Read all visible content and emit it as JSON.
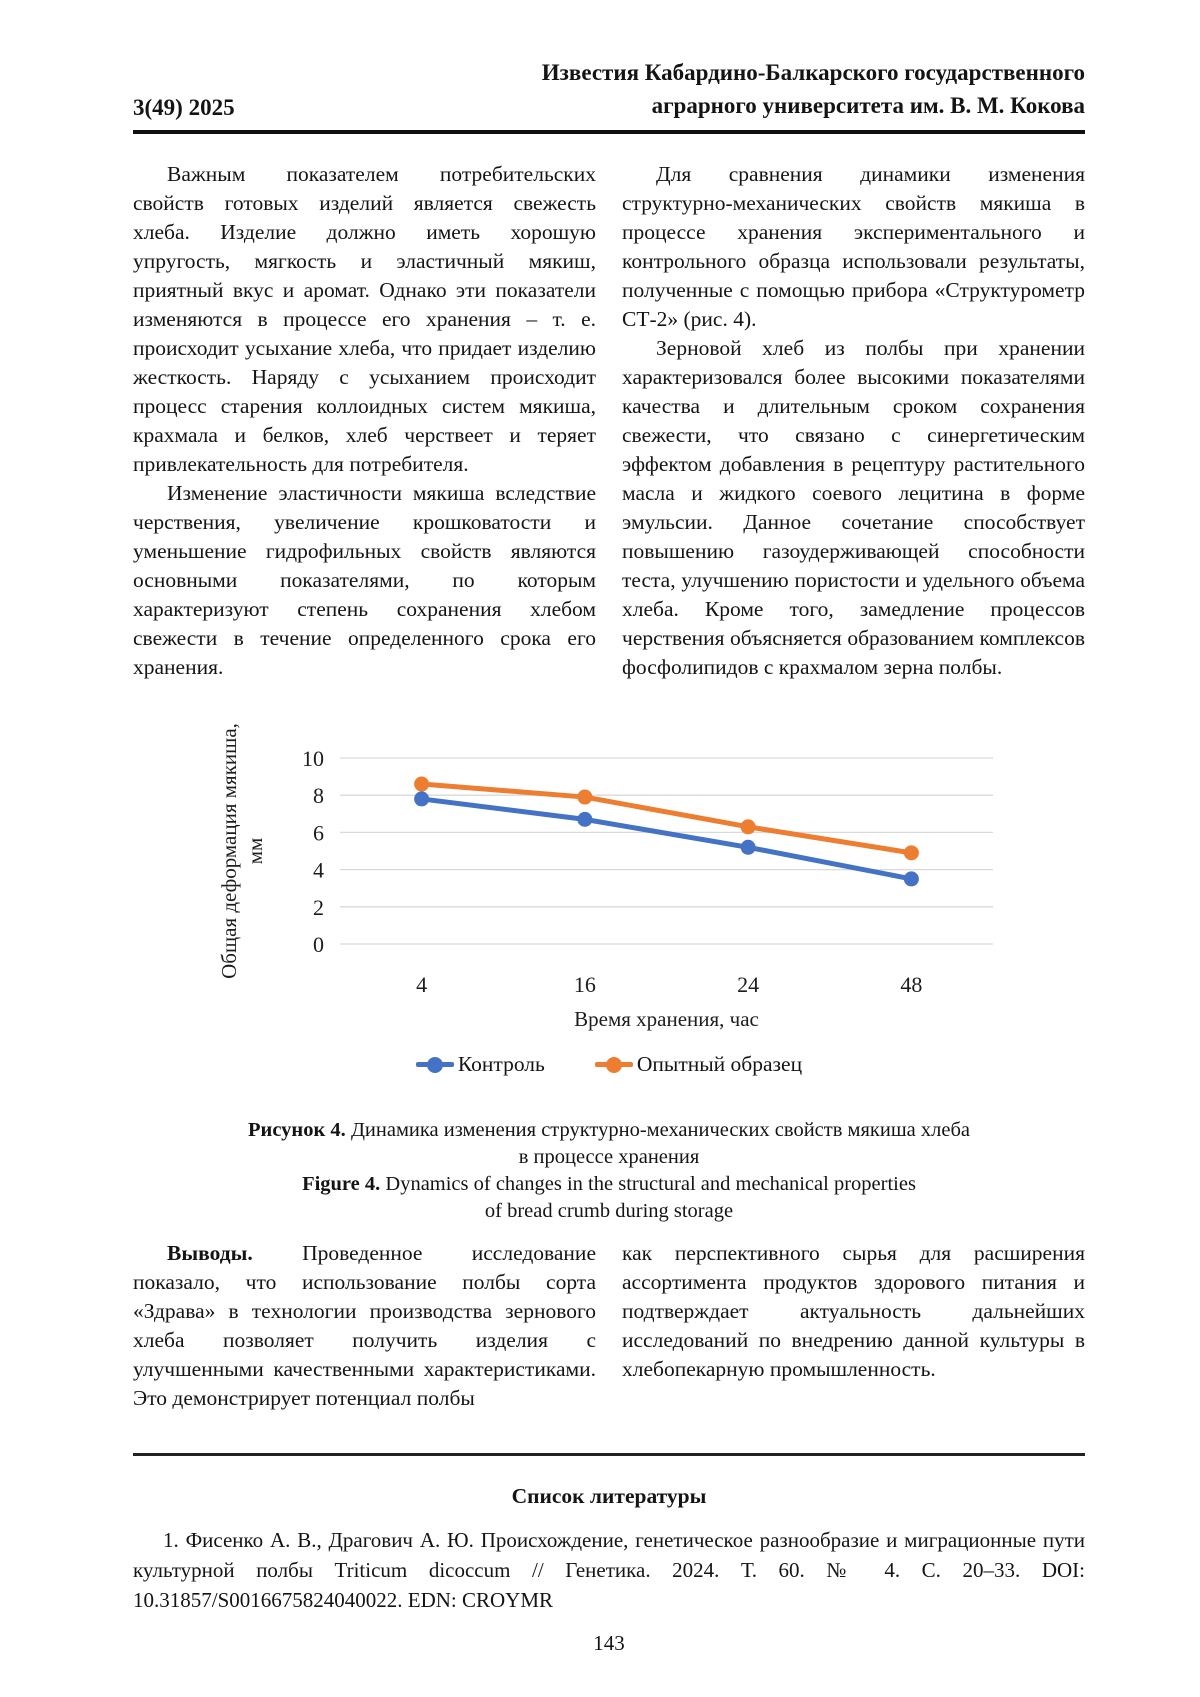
{
  "journal": {
    "issue": "3(49) 2025",
    "title_line1": "Известия Кабардино-Балкарского государственного",
    "title_line2": "аграрного университета им. В. М. Кокова"
  },
  "body": {
    "left": [
      "Важным показателем потребительских свойств готовых изделий является свежесть хлеба. Изделие должно иметь хорошую упругость, мягкость и эластичный мякиш, приятный вкус и аромат. Однако эти показатели изменяются в процессе его хранения – т. е. происходит усыхание хлеба, что придает изделию жесткость. Наряду с усыханием происходит процесс старения коллоидных систем мякиша, крахмала и белков, хлеб черствеет и теряет привлекательность для потребителя.",
      "Изменение эластичности мякиша вследствие черствения, увеличение крошковатости и уменьшение гидрофильных свойств являются основными показателями, по которым характеризуют степень сохранения хлебом свежести в течение определенного срока его хранения."
    ],
    "right": [
      "Для сравнения динамики изменения структурно-механических свойств мякиша в процессе хранения экспериментального и контрольного образца использовали результаты, полученные с помощью прибора «Структурометр СТ-2» (рис. 4).",
      "Зерновой хлеб из полбы при хранении характеризовался более высокими показателями качества и длительным сроком сохранения свежести, что связано с синергетическим эффектом добавления в рецептуру растительного масла и жидкого соевого лецитина в форме эмульсии. Данное сочетание способствует повышению газоудерживающей способности теста, улучшению пористости и удельного объема хлеба. Кроме того, замедление процессов черствения объясняется образованием комплексов фосфолипидов с крахмалом зерна полбы."
    ]
  },
  "chart_data": {
    "type": "line",
    "categories": [
      "4",
      "16",
      "24",
      "48"
    ],
    "series": [
      {
        "name": "Контроль",
        "color": "#4472C4",
        "values": [
          7.8,
          6.7,
          5.2,
          3.5
        ]
      },
      {
        "name": "Опытный образец",
        "color": "#ED7D31",
        "values": [
          8.6,
          7.9,
          6.3,
          4.9
        ]
      }
    ],
    "title": "",
    "xlabel": "Время хранения, час",
    "ylabel": "Общая деформация мякиша, мм",
    "ylabel_lines": [
      "Общая деформация мякиша,",
      "мм"
    ],
    "ylim": [
      0,
      10
    ],
    "yticks": [
      0,
      2,
      4,
      6,
      8,
      10
    ],
    "grid": "horizontal",
    "gridline_color": "#D9D9D9",
    "legend_position": "bottom"
  },
  "caption": {
    "ru_bold": "Рисунок 4.",
    "ru_text": " Динамика изменения структурно-механических свойств мякиша хлеба",
    "ru_line2": "в процессе хранения",
    "en_bold": "Figure 4.",
    "en_text": " Dynamics of changes in the structural and mechanical properties",
    "en_line2": "of bread crumb during storage"
  },
  "conclusions": {
    "heading": "Выводы.",
    "left_text": " Проведенное исследование показало, что использование полбы сорта «Здрава» в технологии производства зернового хлеба позволяет получить изделия с улучшенными качественными характеристиками. Это демонстрирует потенциал полбы",
    "right_text": "как перспективного сырья для расширения ассортимента продуктов здорового питания и подтверждает актуальность дальнейших исследований по внедрению данной культуры в хлебопекарную промышленность."
  },
  "references": {
    "heading": "Список литературы",
    "items": [
      "1.  Фисенко А. В., Драгович А. Ю. Происхождение, генетическое разнообразие и миграционные пути культурной полбы Triticum dicoccum // Генетика. 2024. Т. 60. № 4. С. 20–33. DOI: 10.31857/S0016675824040022. EDN: CROYMR"
    ]
  },
  "page_number": "143"
}
